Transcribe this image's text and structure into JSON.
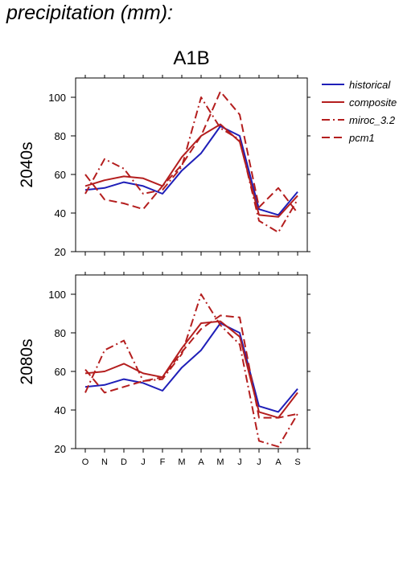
{
  "page_title": "precipitation (mm):",
  "scenario": "A1B",
  "colors": {
    "historical": "#1f1fb8",
    "models": "#b41e1e"
  },
  "legend": [
    {
      "key": "historical",
      "label": "historical",
      "color": "#1f1fb8",
      "dash": "solid"
    },
    {
      "key": "composite",
      "label": "composite",
      "color": "#b41e1e",
      "dash": "solid"
    },
    {
      "key": "miroc_3.2",
      "label": "miroc_3.2",
      "color": "#b41e1e",
      "dash": "dashdot"
    },
    {
      "key": "pcm1",
      "label": "pcm1",
      "color": "#b41e1e",
      "dash": "dashed"
    }
  ],
  "chart_data": [
    {
      "type": "line",
      "title": "A1B",
      "ylabel": "2040s",
      "x": [
        "O",
        "N",
        "D",
        "J",
        "F",
        "M",
        "A",
        "M",
        "J",
        "J",
        "A",
        "S"
      ],
      "ylim": [
        20,
        110
      ],
      "yticks": [
        20,
        40,
        60,
        80,
        100
      ],
      "grid": false,
      "legend_position": "right",
      "series": [
        {
          "name": "historical",
          "values": [
            52,
            53,
            56,
            54,
            50,
            62,
            71,
            85,
            80,
            42,
            39,
            51
          ]
        },
        {
          "name": "composite",
          "values": [
            54,
            57,
            59,
            58,
            54,
            69,
            80,
            86,
            77,
            39,
            38,
            49
          ]
        },
        {
          "name": "miroc_3.2",
          "values": [
            50,
            68,
            63,
            50,
            52,
            64,
            100,
            84,
            78,
            36,
            30,
            47
          ]
        },
        {
          "name": "pcm1",
          "values": [
            60,
            47,
            45,
            42,
            54,
            65,
            80,
            103,
            91,
            43,
            53,
            40
          ]
        }
      ]
    },
    {
      "type": "line",
      "title": "",
      "ylabel": "2080s",
      "x": [
        "O",
        "N",
        "D",
        "J",
        "F",
        "M",
        "A",
        "M",
        "J",
        "J",
        "A",
        "S"
      ],
      "ylim": [
        20,
        110
      ],
      "yticks": [
        20,
        40,
        60,
        80,
        100
      ],
      "grid": false,
      "legend_position": "right",
      "series": [
        {
          "name": "historical",
          "values": [
            52,
            53,
            56,
            54,
            50,
            62,
            71,
            85,
            80,
            42,
            39,
            51
          ]
        },
        {
          "name": "composite",
          "values": [
            59,
            60,
            64,
            59,
            57,
            72,
            85,
            86,
            78,
            39,
            36,
            49
          ]
        },
        {
          "name": "miroc_3.2",
          "values": [
            49,
            71,
            76,
            55,
            56,
            69,
            100,
            84,
            74,
            24,
            21,
            38
          ]
        },
        {
          "name": "pcm1",
          "values": [
            61,
            49,
            52,
            55,
            57,
            70,
            82,
            89,
            88,
            36,
            36,
            38
          ]
        }
      ]
    }
  ]
}
